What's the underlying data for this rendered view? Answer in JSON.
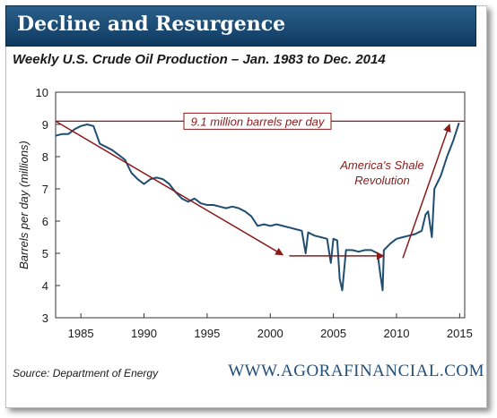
{
  "header": {
    "title": "Decline and Resurgence"
  },
  "subtitle": "Weekly U.S. Crude Oil Production – Jan. 1983 to Dec. 2014",
  "footer": {
    "source": "Source: Department of Energy",
    "website": "WWW.AGORAFINANCIAL.COM"
  },
  "colors": {
    "line": "#1f4e72",
    "annotation": "#8b1a1a",
    "header": "#1d4e76",
    "grid": "#d0d0d0"
  },
  "chart_data": {
    "type": "line",
    "title": "Weekly U.S. Crude Oil Production – Jan. 1983 to Dec. 2014",
    "xlabel": "",
    "ylabel": "Barrels per day (millions)",
    "xlim": [
      1983,
      2015.4
    ],
    "ylim": [
      3,
      10
    ],
    "x_ticks": [
      1985,
      1990,
      1995,
      2000,
      2005,
      2010,
      2015
    ],
    "y_ticks": [
      3,
      4,
      5,
      6,
      7,
      8,
      9,
      10
    ],
    "grid": false,
    "series": [
      {
        "x": [
          1983.0,
          1983.5,
          1984.0,
          1984.5,
          1985.0,
          1985.5,
          1986.0,
          1986.5,
          1987.0,
          1987.5,
          1988.0,
          1988.5,
          1989.0,
          1989.5,
          1990.0,
          1990.5,
          1991.0,
          1991.5,
          1992.0,
          1992.5,
          1993.0,
          1993.5,
          1994.0,
          1994.5,
          1995.0,
          1995.5,
          1996.0,
          1996.5,
          1997.0,
          1997.5,
          1998.0,
          1998.5,
          1999.0,
          1999.5,
          2000.0,
          2000.5,
          2001.0,
          2001.5,
          2002.0,
          2002.5,
          2002.8,
          2003.0,
          2003.5,
          2004.0,
          2004.5,
          2004.8,
          2005.0,
          2005.3,
          2005.5,
          2005.7,
          2006.0,
          2006.5,
          2007.0,
          2007.5,
          2008.0,
          2008.5,
          2008.7,
          2008.9,
          2009.0,
          2009.5,
          2010.0,
          2010.5,
          2011.0,
          2011.5,
          2012.0,
          2012.3,
          2012.5,
          2012.8,
          2013.0,
          2013.5,
          2014.0,
          2014.5,
          2014.95
        ],
        "values": [
          8.65,
          8.7,
          8.7,
          8.85,
          8.95,
          9.0,
          8.95,
          8.4,
          8.3,
          8.2,
          8.05,
          7.9,
          7.5,
          7.3,
          7.15,
          7.3,
          7.35,
          7.3,
          7.15,
          6.9,
          6.7,
          6.6,
          6.7,
          6.55,
          6.5,
          6.5,
          6.45,
          6.4,
          6.45,
          6.4,
          6.3,
          6.15,
          5.85,
          5.9,
          5.85,
          5.9,
          5.85,
          5.8,
          5.75,
          5.7,
          5.0,
          5.65,
          5.55,
          5.5,
          5.45,
          4.7,
          5.45,
          5.4,
          4.2,
          3.85,
          5.1,
          5.1,
          5.05,
          5.1,
          5.1,
          5.0,
          4.4,
          3.85,
          5.1,
          5.3,
          5.45,
          5.5,
          5.55,
          5.6,
          5.7,
          6.2,
          6.3,
          5.5,
          7.0,
          7.4,
          8.0,
          8.5,
          9.05
        ]
      }
    ],
    "annotations": [
      {
        "text": "9.1 million barrels per day",
        "value": 9.1
      },
      {
        "text": "America's Shale",
        "text2": "Revolution"
      }
    ]
  }
}
